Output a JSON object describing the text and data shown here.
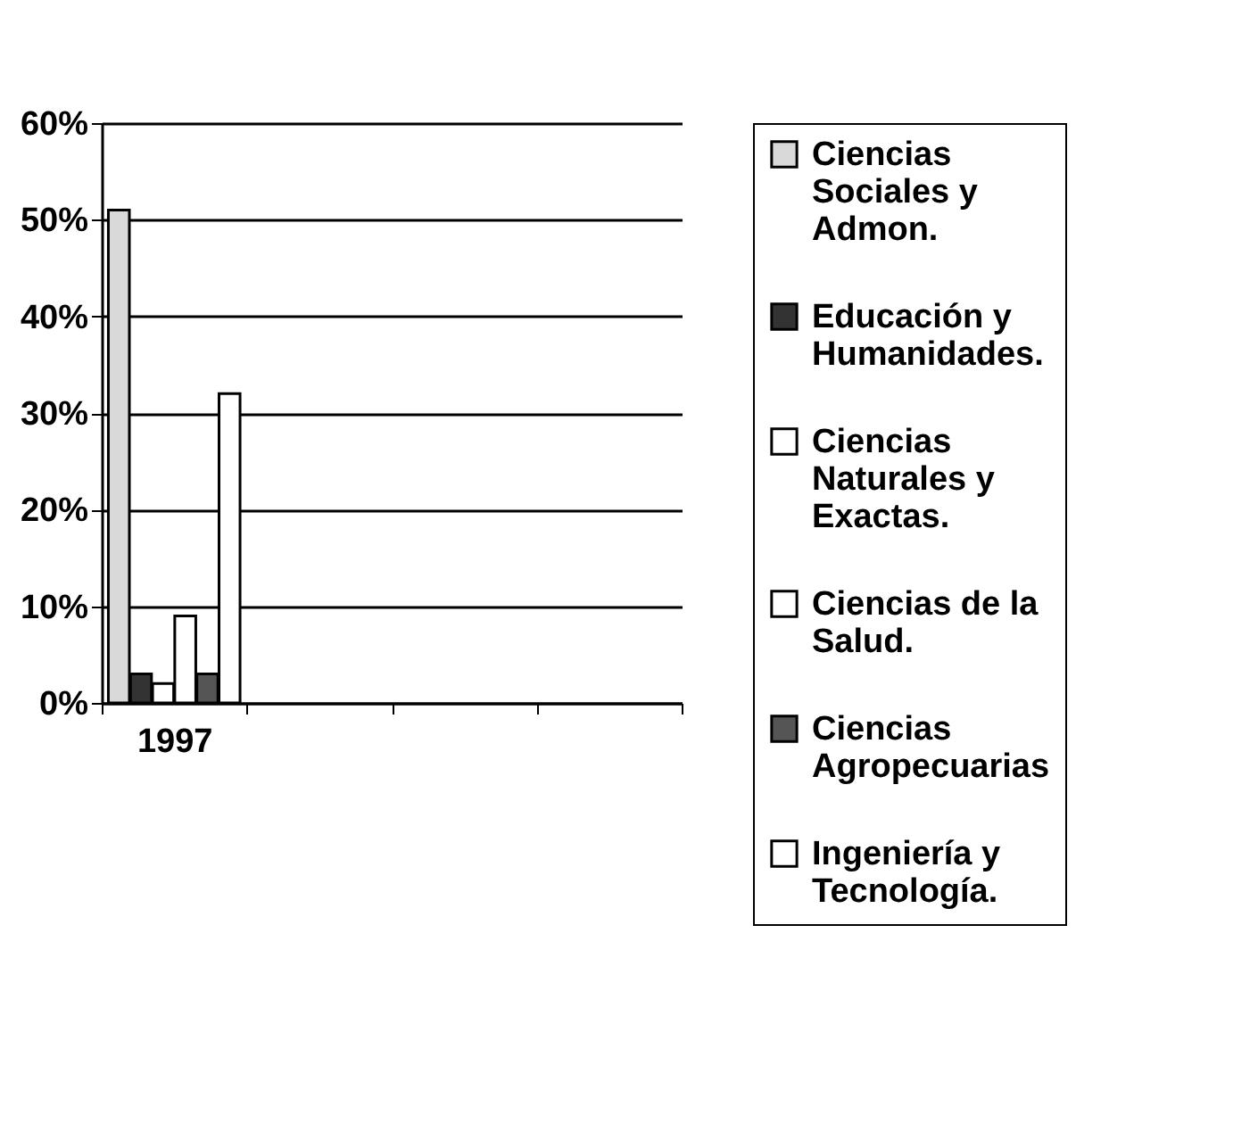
{
  "chart_data": {
    "type": "bar",
    "categories": [
      "1997",
      null,
      null,
      null
    ],
    "series": [
      {
        "name": "Ciencias Sociales y Admon.",
        "color": "#d9d9d9",
        "values": [
          51,
          null,
          null,
          null
        ]
      },
      {
        "name": "Educación y Humanidades.",
        "color": "#333333",
        "values": [
          3,
          null,
          null,
          null
        ]
      },
      {
        "name": "Ciencias Naturales y Exactas.",
        "color": "#ffffff",
        "values": [
          2,
          null,
          null,
          null
        ]
      },
      {
        "name": "Ciencias de la Salud.",
        "color": "#ffffff",
        "values": [
          9,
          null,
          null,
          null
        ]
      },
      {
        "name": "Ciencias Agropecuarias",
        "color": "#555555",
        "values": [
          3,
          null,
          null,
          null
        ]
      },
      {
        "name": "Ingeniería y Tecnología.",
        "color": "#ffffff",
        "values": [
          32,
          null,
          null,
          null
        ]
      }
    ],
    "ylim": [
      0,
      60
    ],
    "yticks": [
      {
        "value": 0,
        "label": "0%"
      },
      {
        "value": 10,
        "label": "10%"
      },
      {
        "value": 20,
        "label": "20%"
      },
      {
        "value": 30,
        "label": "30%"
      },
      {
        "value": 40,
        "label": "40%"
      },
      {
        "value": 50,
        "label": "50%"
      },
      {
        "value": 60,
        "label": "60%"
      }
    ],
    "grid": "y",
    "legend": "right"
  }
}
